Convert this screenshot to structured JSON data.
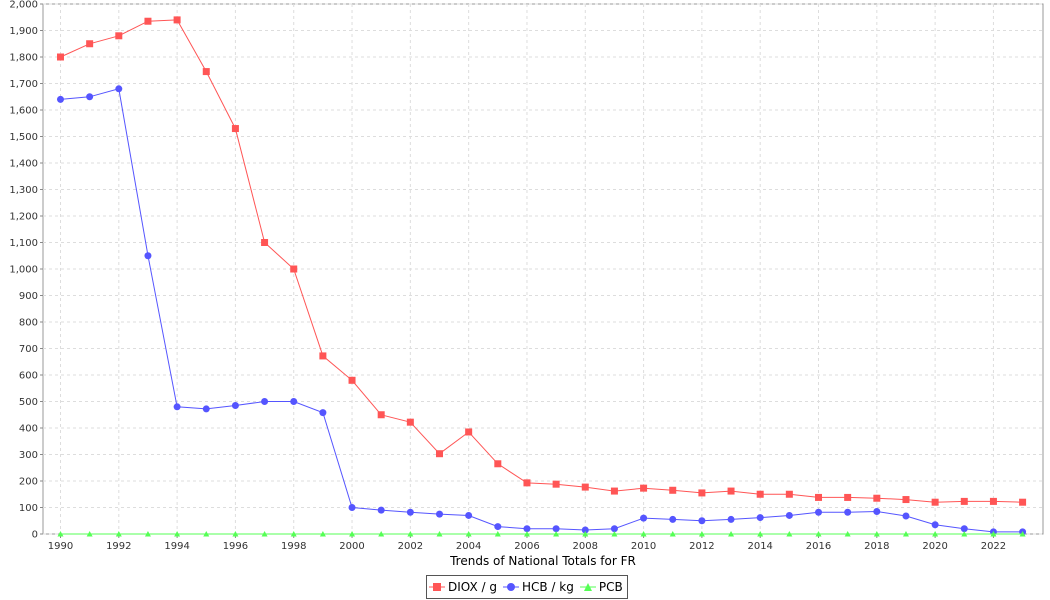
{
  "chart_data": {
    "type": "line",
    "xlabel": "Trends of National Totals for FR",
    "ylabel": "",
    "ylim": [
      0,
      2000
    ],
    "yticks": [
      0,
      100,
      200,
      300,
      400,
      500,
      600,
      700,
      800,
      900,
      1000,
      1100,
      1200,
      1300,
      1400,
      1500,
      1600,
      1700,
      1800,
      1900,
      2000
    ],
    "ytick_labels": [
      "0",
      "100",
      "200",
      "300",
      "400",
      "500",
      "600",
      "700",
      "800",
      "900",
      "1,000",
      "1,100",
      "1,200",
      "1,300",
      "1,400",
      "1,500",
      "1,600",
      "1,700",
      "1,800",
      "1,900",
      "2,000"
    ],
    "xticks": [
      1990,
      1992,
      1994,
      1996,
      1998,
      2000,
      2002,
      2004,
      2006,
      2008,
      2010,
      2012,
      2014,
      2016,
      2018,
      2020,
      2022
    ],
    "grid": true,
    "legend_position": "bottom",
    "x": [
      1990,
      1991,
      1992,
      1993,
      1994,
      1995,
      1996,
      1997,
      1998,
      1999,
      2000,
      2001,
      2002,
      2003,
      2004,
      2005,
      2006,
      2007,
      2008,
      2009,
      2010,
      2011,
      2012,
      2013,
      2014,
      2015,
      2016,
      2017,
      2018,
      2019,
      2020,
      2021,
      2022,
      2023
    ],
    "series": [
      {
        "name": "DIOX / g",
        "color": "#ff5555",
        "marker": "square",
        "values": [
          1800,
          1850,
          1880,
          1935,
          1940,
          1745,
          1530,
          1100,
          1000,
          672,
          580,
          450,
          422,
          303,
          385,
          265,
          193,
          188,
          177,
          162,
          173,
          165,
          155,
          162,
          150,
          150,
          138,
          138,
          135,
          130,
          120,
          123,
          123,
          120
        ]
      },
      {
        "name": "HCB / kg",
        "color": "#5555ff",
        "marker": "circle",
        "values": [
          1640,
          1650,
          1680,
          1050,
          480,
          472,
          485,
          500,
          500,
          458,
          100,
          90,
          82,
          75,
          70,
          28,
          20,
          20,
          15,
          20,
          60,
          55,
          50,
          55,
          62,
          70,
          82,
          82,
          85,
          68,
          35,
          20,
          8,
          8
        ]
      },
      {
        "name": "PCB",
        "color": "#55ff55",
        "marker": "triangle",
        "values": [
          0,
          0,
          0,
          0,
          0,
          0,
          0,
          0,
          0,
          0,
          0,
          0,
          0,
          0,
          0,
          0,
          0,
          0,
          0,
          0,
          0,
          0,
          0,
          0,
          0,
          0,
          0,
          0,
          0,
          0,
          0,
          0,
          0,
          0
        ]
      }
    ]
  },
  "legend": {
    "diox_label": "DIOX / g",
    "hcb_label": "HCB / kg",
    "pcb_label": "PCB"
  }
}
